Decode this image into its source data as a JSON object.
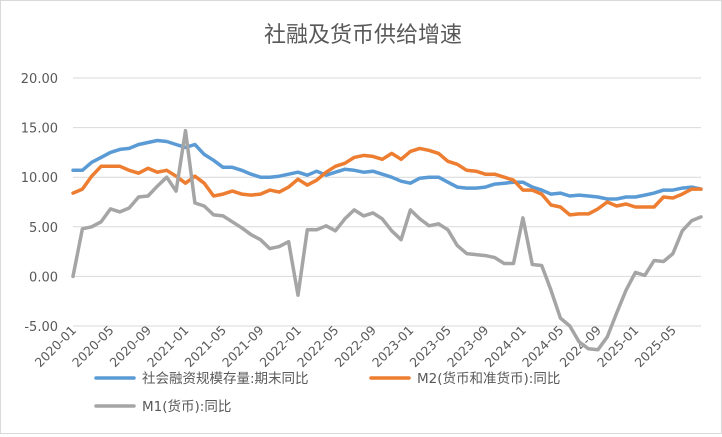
{
  "chart_data": {
    "type": "line",
    "title": "社融及货币供给增速",
    "xlabel": "",
    "ylabel": "",
    "ylim": [
      -5,
      20
    ],
    "yticks": [
      "-5.00",
      "0.00",
      "5.00",
      "10.00",
      "15.00",
      "20.00"
    ],
    "grid": true,
    "legend_position": "bottom",
    "x_tick_labels": [
      "2020-01",
      "2020-05",
      "2020-09",
      "2021-01",
      "2021-05",
      "2021-09",
      "2022-01",
      "2022-05",
      "2022-09",
      "2023-01",
      "2023-05",
      "2023-09",
      "2024-01",
      "2024-05",
      "2024-09",
      "2025-01",
      "2025-05"
    ],
    "x_start": "2020-01",
    "x": [
      "2020-01",
      "2020-02",
      "2020-03",
      "2020-04",
      "2020-05",
      "2020-06",
      "2020-07",
      "2020-08",
      "2020-09",
      "2020-10",
      "2020-11",
      "2020-12",
      "2021-01",
      "2021-02",
      "2021-03",
      "2021-04",
      "2021-05",
      "2021-06",
      "2021-07",
      "2021-08",
      "2021-09",
      "2021-10",
      "2021-11",
      "2021-12",
      "2022-01",
      "2022-02",
      "2022-03",
      "2022-04",
      "2022-05",
      "2022-06",
      "2022-07",
      "2022-08",
      "2022-09",
      "2022-10",
      "2022-11",
      "2022-12",
      "2023-01",
      "2023-02",
      "2023-03",
      "2023-04",
      "2023-05",
      "2023-06",
      "2023-07",
      "2023-08",
      "2023-09",
      "2023-10",
      "2023-11",
      "2023-12",
      "2024-01",
      "2024-02",
      "2024-03",
      "2024-04",
      "2024-05",
      "2024-06",
      "2024-07",
      "2024-08",
      "2024-09",
      "2024-10",
      "2024-11",
      "2024-12",
      "2025-01",
      "2025-02",
      "2025-03",
      "2025-04",
      "2025-05",
      "2025-06",
      "2025-07",
      "2025-08"
    ],
    "series": [
      {
        "name": "社会融资规模存量:期末同比",
        "color": "#5b9bd5",
        "values": [
          10.7,
          10.7,
          11.5,
          12.0,
          12.5,
          12.8,
          12.9,
          13.3,
          13.5,
          13.7,
          13.6,
          13.3,
          13.0,
          13.3,
          12.3,
          11.7,
          11.0,
          11.0,
          10.7,
          10.3,
          10.0,
          10.0,
          10.1,
          10.3,
          10.5,
          10.2,
          10.6,
          10.2,
          10.5,
          10.8,
          10.7,
          10.5,
          10.6,
          10.3,
          10.0,
          9.6,
          9.4,
          9.9,
          10.0,
          10.0,
          9.5,
          9.0,
          8.9,
          8.9,
          9.0,
          9.3,
          9.4,
          9.5,
          9.5,
          9.0,
          8.7,
          8.3,
          8.4,
          8.1,
          8.2,
          8.1,
          8.0,
          7.8,
          7.8,
          8.0,
          8.0,
          8.2,
          8.4,
          8.7,
          8.7,
          8.9,
          9.0,
          8.8
        ]
      },
      {
        "name": "M2(货币和准货币):同比",
        "color": "#ed7d31",
        "values": [
          8.4,
          8.8,
          10.1,
          11.1,
          11.1,
          11.1,
          10.7,
          10.4,
          10.9,
          10.5,
          10.7,
          10.1,
          9.4,
          10.1,
          9.4,
          8.1,
          8.3,
          8.6,
          8.3,
          8.2,
          8.3,
          8.7,
          8.5,
          9.0,
          9.8,
          9.2,
          9.7,
          10.5,
          11.1,
          11.4,
          12.0,
          12.2,
          12.1,
          11.8,
          12.4,
          11.8,
          12.6,
          12.9,
          12.7,
          12.4,
          11.6,
          11.3,
          10.7,
          10.6,
          10.3,
          10.3,
          10.0,
          9.7,
          8.7,
          8.7,
          8.3,
          7.2,
          7.0,
          6.2,
          6.3,
          6.3,
          6.8,
          7.5,
          7.1,
          7.3,
          7.0,
          7.0,
          7.0,
          8.0,
          7.9,
          8.3,
          8.8,
          8.8
        ]
      },
      {
        "name": "M1(货币):同比",
        "color": "#a5a5a5",
        "values": [
          0.0,
          4.8,
          5.0,
          5.5,
          6.8,
          6.5,
          6.9,
          8.0,
          8.1,
          9.1,
          10.0,
          8.6,
          14.7,
          7.4,
          7.1,
          6.2,
          6.1,
          5.5,
          4.9,
          4.2,
          3.7,
          2.8,
          3.0,
          3.5,
          -1.9,
          4.7,
          4.7,
          5.1,
          4.6,
          5.8,
          6.7,
          6.1,
          6.4,
          5.8,
          4.6,
          3.7,
          6.7,
          5.8,
          5.1,
          5.3,
          4.7,
          3.1,
          2.3,
          2.2,
          2.1,
          1.9,
          1.3,
          1.3,
          5.9,
          1.2,
          1.1,
          -1.4,
          -4.2,
          -5.0,
          -6.6,
          -7.3,
          -7.4,
          -6.1,
          -3.7,
          -1.4,
          0.4,
          0.1,
          1.6,
          1.5,
          2.3,
          4.6,
          5.6,
          6.0
        ]
      }
    ]
  }
}
